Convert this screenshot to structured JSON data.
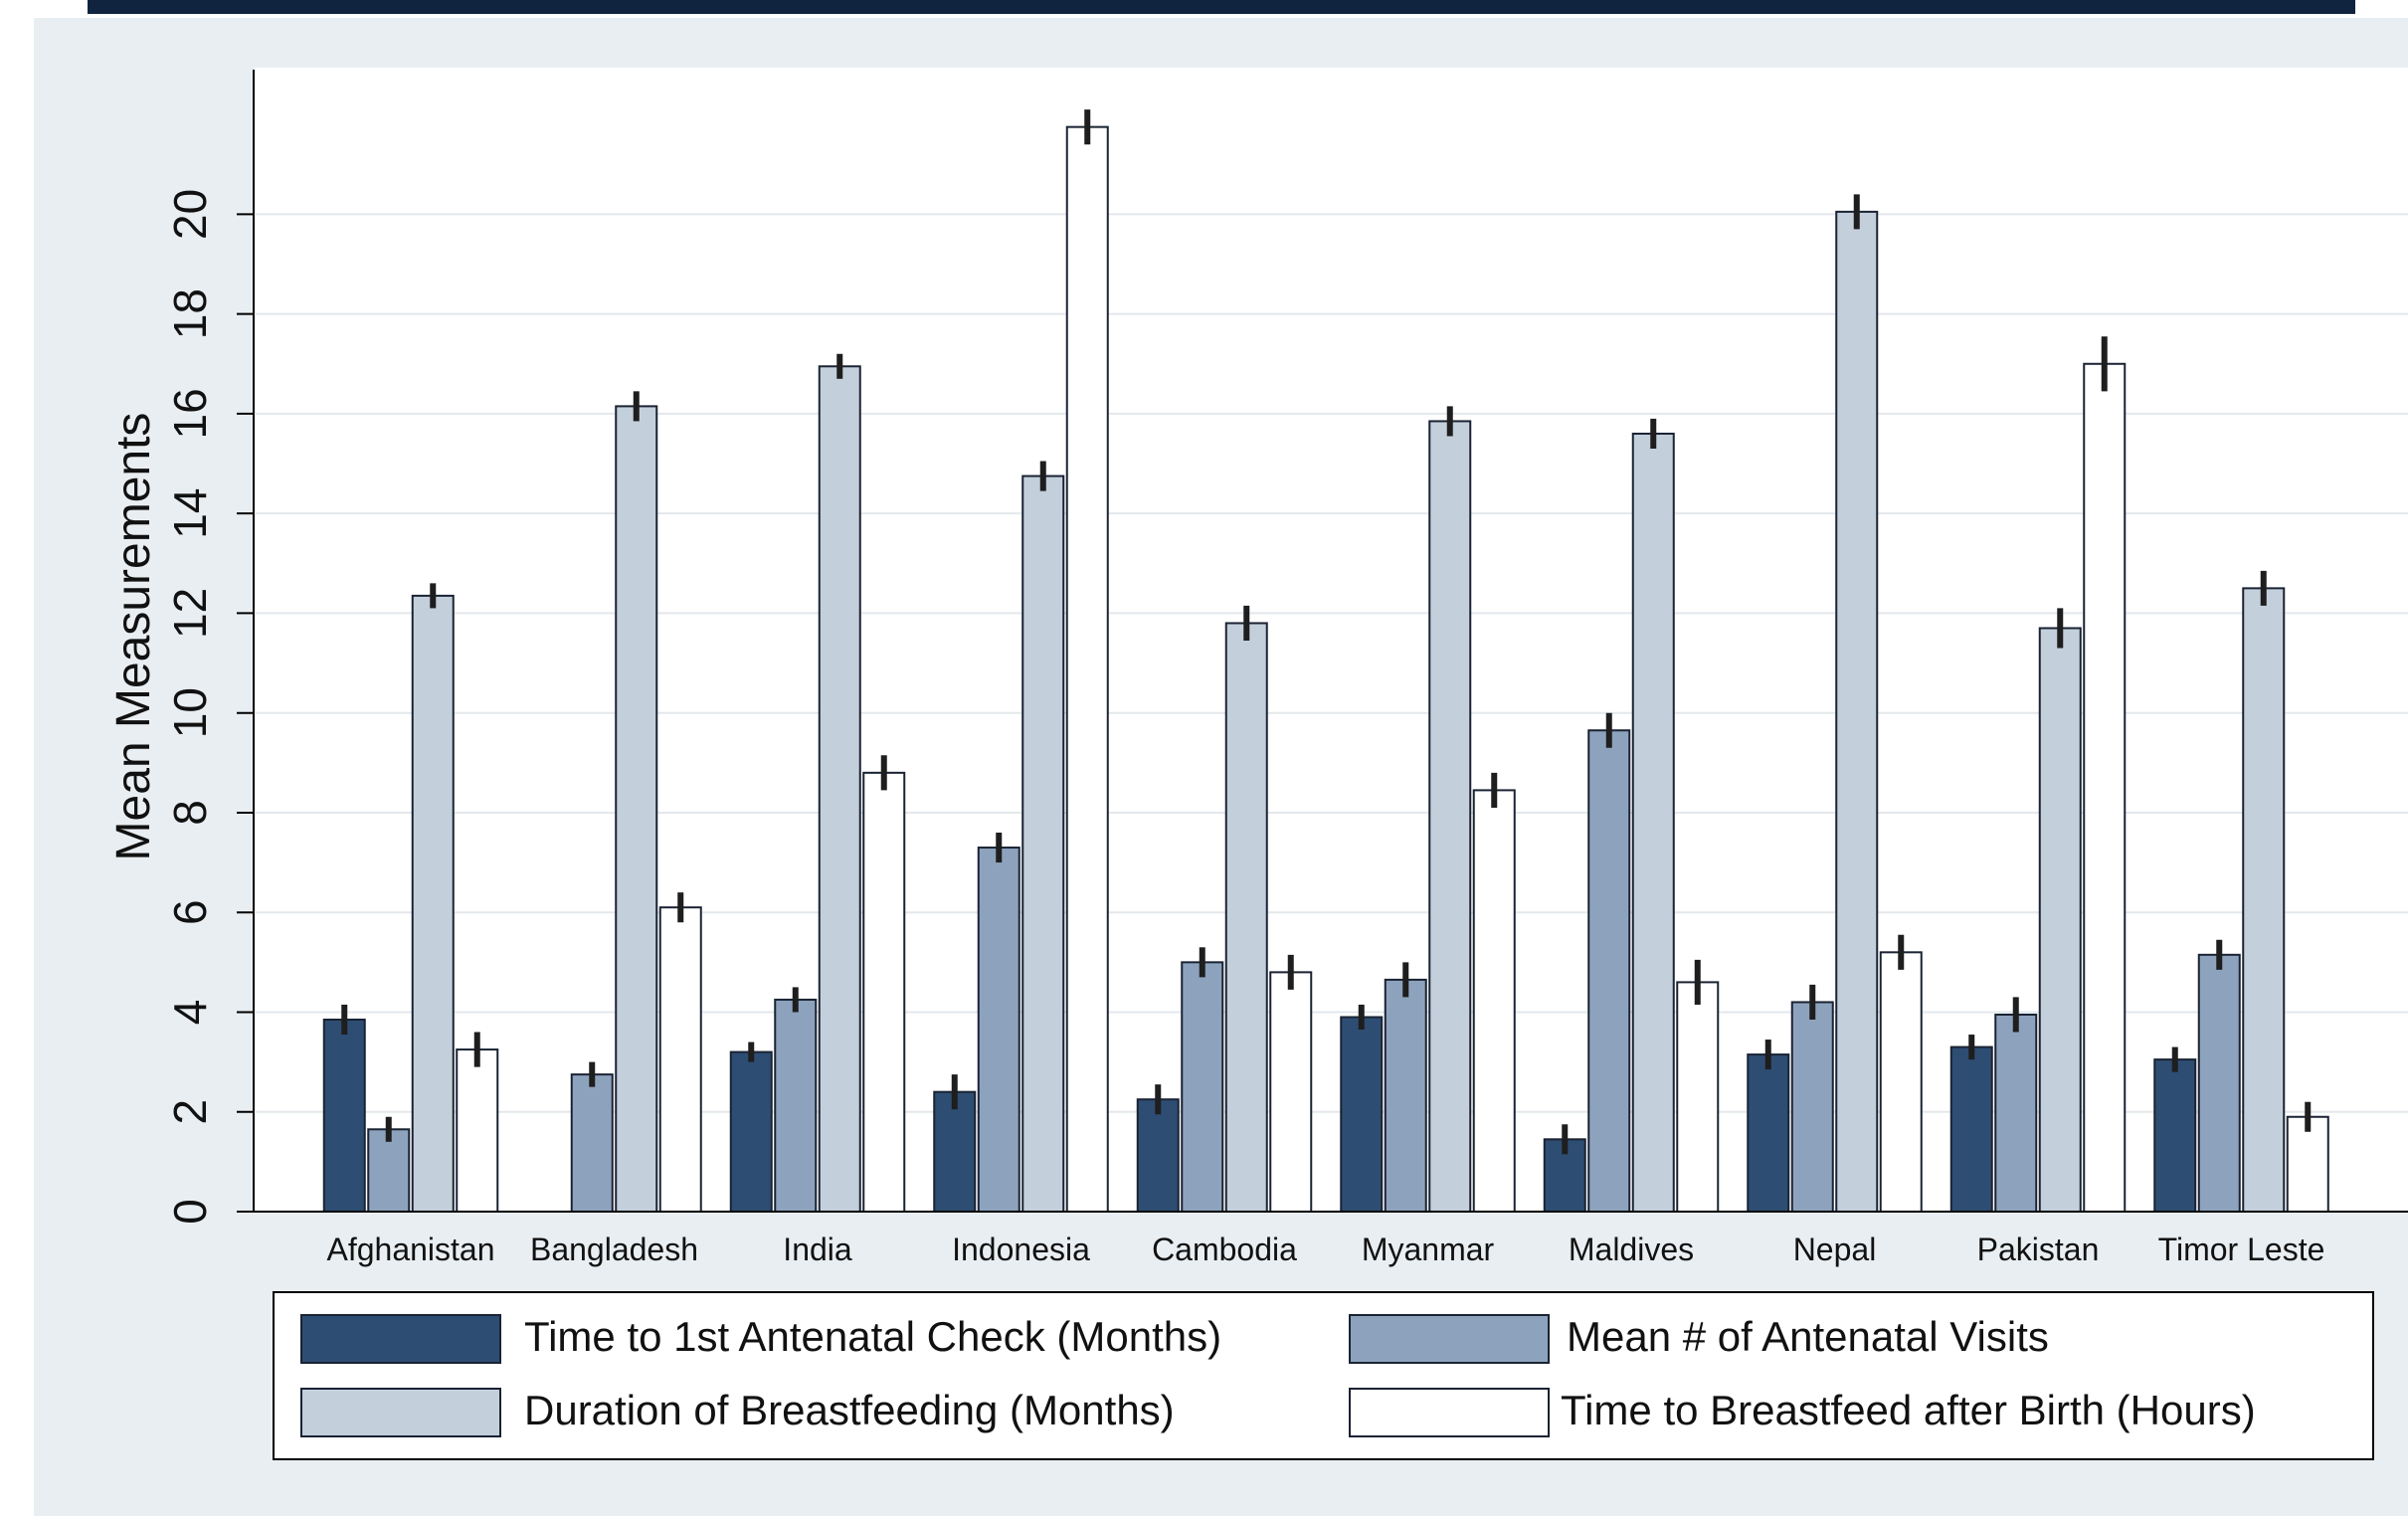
{
  "chart_data": {
    "type": "bar",
    "ylabel": "Mean Measurements",
    "xlabel": "",
    "ylim": [
      0,
      23
    ],
    "yticks": [
      0,
      2,
      4,
      6,
      8,
      10,
      12,
      14,
      16,
      18,
      20
    ],
    "grid": true,
    "legend_position": "bottom",
    "categories": [
      "Afghanistan",
      "Bangladesh",
      "India",
      "Indonesia",
      "Cambodia",
      "Myanmar",
      "Maldives",
      "Nepal",
      "Pakistan",
      "Timor Leste"
    ],
    "series": [
      {
        "name": "Time to 1st Antenatal Check (Months)",
        "color": "#2e4d73",
        "values": [
          3.85,
          null,
          3.2,
          2.4,
          2.25,
          3.9,
          1.45,
          3.15,
          3.3,
          3.05
        ],
        "errors": [
          0.3,
          null,
          0.2,
          0.35,
          0.3,
          0.25,
          0.3,
          0.3,
          0.25,
          0.25
        ]
      },
      {
        "name": "Mean # of Antenatal Visits",
        "color": "#8da3bd",
        "values": [
          1.65,
          2.75,
          4.25,
          7.3,
          5.0,
          4.65,
          9.65,
          4.2,
          3.95,
          5.15
        ],
        "errors": [
          0.25,
          0.25,
          0.25,
          0.3,
          0.3,
          0.35,
          0.35,
          0.35,
          0.35,
          0.3
        ]
      },
      {
        "name": "Duration of Breastfeeding (Months)",
        "color": "#c4cfdc",
        "values": [
          12.35,
          16.15,
          16.95,
          14.75,
          11.8,
          15.85,
          15.6,
          20.05,
          11.7,
          12.5
        ],
        "errors": [
          0.25,
          0.3,
          0.25,
          0.3,
          0.35,
          0.3,
          0.3,
          0.35,
          0.4,
          0.35
        ]
      },
      {
        "name": "Time to Breastfeed after Birth (Hours)",
        "color": "#ffffff",
        "values": [
          3.25,
          6.1,
          8.8,
          21.75,
          4.8,
          8.45,
          4.6,
          5.2,
          17.0,
          1.9
        ],
        "errors": [
          0.35,
          0.3,
          0.35,
          0.35,
          0.35,
          0.35,
          0.45,
          0.35,
          0.55,
          0.3
        ]
      }
    ]
  }
}
